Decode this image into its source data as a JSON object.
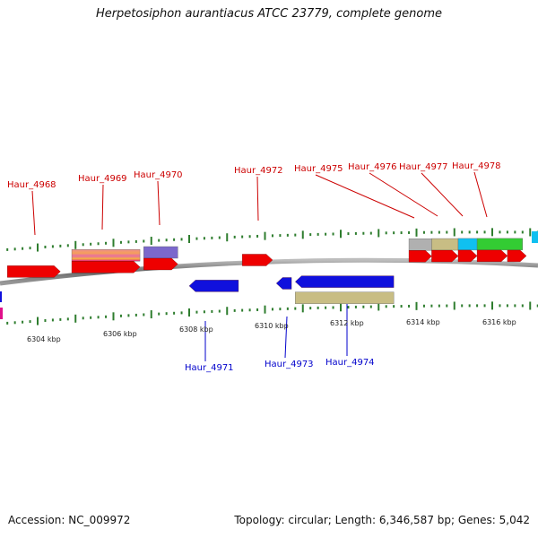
{
  "title": "Herpetosiphon aurantiacus ATCC 23779, complete genome",
  "footer": {
    "accession": "Accession: NC_009972",
    "summary": "Topology: circular; Length: 6,346,587 bp; Genes: 5,042"
  },
  "colors": {
    "backbone": "#7a7a7a",
    "forward_gene": "#ee0000",
    "reverse_gene": "#1010dd",
    "forward_label": "#cc0000",
    "reverse_label": "#0000cc",
    "tick": "#2e7d2e",
    "khaki": "#c8bd84",
    "purple": "#7b68cc",
    "gray": "#b0b0b0",
    "cyan": "#10c0f0",
    "green": "#33cc33",
    "magenta": "#e0108a"
  },
  "kbp_labels": [
    "6304 kbp",
    "6306 kbp",
    "6308 kbp",
    "6310 kbp",
    "6312 kbp",
    "6314 kbp",
    "6316 kbp"
  ],
  "forward_genes": [
    {
      "label": "Haur_4968",
      "start": 6303.2,
      "end": 6304.6
    },
    {
      "label": "Haur_4969",
      "start": 6304.9,
      "end": 6306.7
    },
    {
      "label": "Haur_4970",
      "start": 6306.8,
      "end": 6307.7
    },
    {
      "label": "Haur_4972",
      "start": 6309.4,
      "end": 6310.2
    },
    {
      "label": "Haur_4975",
      "start": 6313.8,
      "end": 6314.4
    },
    {
      "label": "Haur_4976",
      "start": 6314.4,
      "end": 6315.1
    },
    {
      "label": "Haur_4977",
      "start": 6315.1,
      "end": 6315.6
    },
    {
      "label": "Haur_4978",
      "start": 6315.6,
      "end": 6316.4
    },
    {
      "label": "",
      "start": 6316.4,
      "end": 6316.9
    }
  ],
  "reverse_genes": [
    {
      "label": "Haur_4971",
      "start": 6308.0,
      "end": 6309.3
    },
    {
      "label": "Haur_4973",
      "start": 6310.3,
      "end": 6310.7
    },
    {
      "label": "Haur_4974",
      "start": 6310.8,
      "end": 6313.4
    }
  ],
  "feature_blocks": [
    {
      "color": "striped",
      "start": 6304.9,
      "end": 6306.7,
      "strand": "forward"
    },
    {
      "color": "purple",
      "start": 6306.8,
      "end": 6307.7,
      "strand": "forward"
    },
    {
      "color": "gray",
      "start": 6313.8,
      "end": 6314.4,
      "strand": "forward"
    },
    {
      "color": "khaki",
      "start": 6314.4,
      "end": 6315.1,
      "strand": "forward"
    },
    {
      "color": "cyan",
      "start": 6315.1,
      "end": 6315.6,
      "strand": "forward"
    },
    {
      "color": "green",
      "start": 6315.6,
      "end": 6316.8,
      "strand": "forward"
    },
    {
      "color": "khaki",
      "start": 6310.8,
      "end": 6313.4,
      "strand": "reverse"
    }
  ]
}
